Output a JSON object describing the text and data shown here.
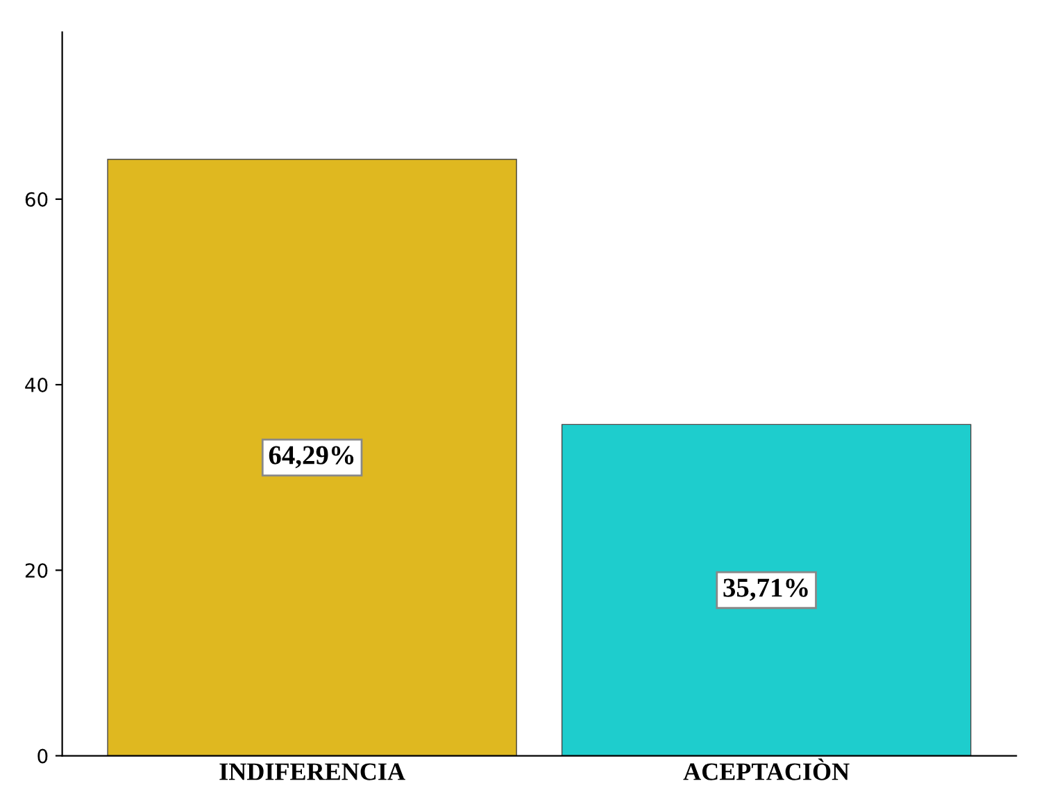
{
  "chart_data": {
    "type": "bar",
    "categories": [
      "INDIFERENCIA",
      "ACEPTACIÒN"
    ],
    "values": [
      64.29,
      35.71
    ],
    "colors": [
      "#dfb820",
      "#1ecdcd"
    ],
    "value_labels": [
      "64,29%",
      "35,71%"
    ],
    "ylim": [
      0,
      78
    ],
    "yticks": [
      0,
      20,
      40,
      60
    ],
    "grid": false
  }
}
